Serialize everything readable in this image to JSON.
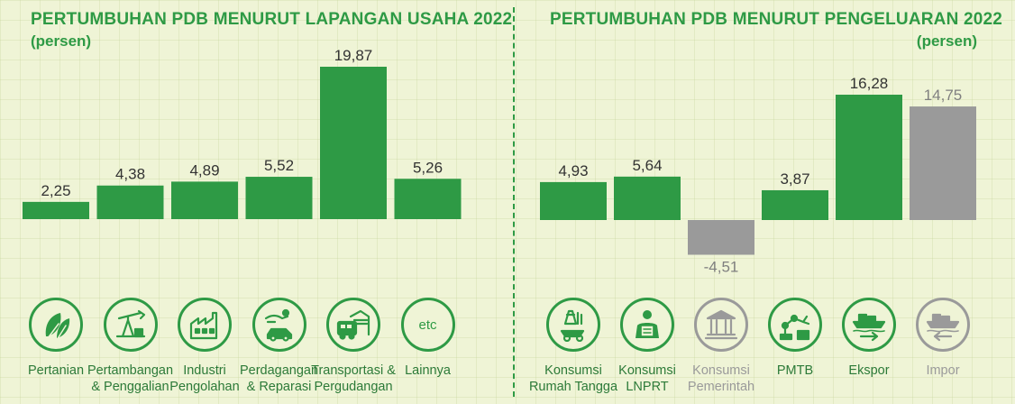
{
  "chart_data": [
    {
      "type": "bar",
      "title": "PERTUMBUHAN PDB MENURUT LAPANGAN USAHA 2022",
      "subtitle": "(persen)",
      "categories": [
        "Pertanian",
        "Pertambangan\n& Penggalian",
        "Industri\nPengolahan",
        "Perdagangan\n& Reparasi",
        "Transportasi &\nPergudangan",
        "Lainnya"
      ],
      "values": [
        2.25,
        4.38,
        4.89,
        5.52,
        19.87,
        5.26
      ],
      "value_labels": [
        "2,25",
        "4,38",
        "4,89",
        "5,52",
        "19,87",
        "5,26"
      ],
      "icons": [
        "leaf-icon",
        "oil-pump-icon",
        "factory-icon",
        "trade-hands-icon",
        "truck-warehouse-icon",
        "etc-icon"
      ],
      "etc_label": "etc",
      "ylim": [
        0,
        19.87
      ],
      "grid": false,
      "colors": {
        "bar": "#2e9a45"
      }
    },
    {
      "type": "bar",
      "title": "PERTUMBUHAN PDB MENURUT PENGELUARAN 2022",
      "subtitle": "(persen)",
      "categories": [
        "Konsumsi\nRumah Tangga",
        "Konsumsi\nLNPRT",
        "Konsumsi\nPemerintah",
        "PMTB",
        "Ekspor",
        "Impor"
      ],
      "values": [
        4.93,
        5.64,
        -4.51,
        3.87,
        16.28,
        14.75
      ],
      "value_labels": [
        "4,93",
        "5,64",
        "-4,51",
        "3,87",
        "16,28",
        "14,75"
      ],
      "icons": [
        "household-icon",
        "person-icon",
        "government-building-icon",
        "robot-arm-icon",
        "ship-export-icon",
        "ship-import-icon"
      ],
      "ylim": [
        -4.51,
        16.28
      ],
      "grid": false,
      "colors": {
        "bar": "#2e9a45",
        "negative": "#9a9a9a",
        "import": "#9a9a9a"
      }
    }
  ]
}
